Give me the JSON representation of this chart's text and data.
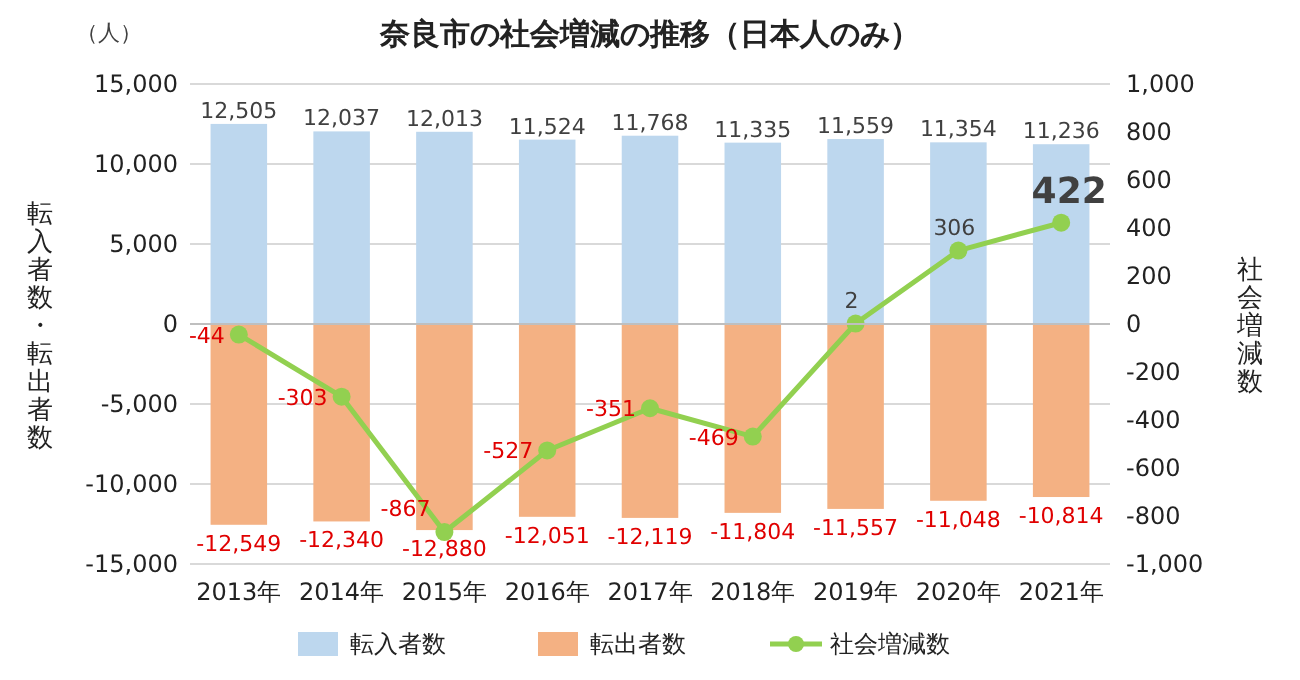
{
  "chart_data": {
    "type": "bar",
    "title": "奈良市の社会増減の推移（日本人のみ）",
    "ylabel": "転入者数・転出者数",
    "y2label": "社会増減数",
    "annotations": [
      "（人）"
    ],
    "categories": [
      "2013年",
      "2014年",
      "2015年",
      "2016年",
      "2017年",
      "2018年",
      "2019年",
      "2020年",
      "2021年"
    ],
    "stacked": true,
    "data_labels": true,
    "grid": "y",
    "legend": "bottom",
    "ylim": [
      -15000,
      15000
    ],
    "yticks": [
      {
        "value": -15000,
        "label": "-15,000"
      },
      {
        "value": -10000,
        "label": "-10,000"
      },
      {
        "value": -5000,
        "label": "-5,000"
      },
      0,
      {
        "value": 5000,
        "label": "5,000"
      },
      {
        "value": 10000,
        "label": "10,000"
      },
      {
        "value": 15000,
        "label": "15,000"
      }
    ],
    "y2lim": [
      -1000,
      1000
    ],
    "y2ticks": [
      {
        "value": -1000,
        "label": "-1,000"
      },
      -800,
      -600,
      -400,
      -200,
      0,
      200,
      400,
      600,
      800,
      {
        "value": 1000,
        "label": "1,000"
      }
    ],
    "series": [
      {
        "name": "転入者数",
        "color": "#bdd7ee",
        "values": [
          12505,
          12037,
          12013,
          11524,
          11768,
          11335,
          11559,
          11354,
          11236
        ],
        "value_labels": [
          "12,505",
          "12,037",
          "12,013",
          "11,524",
          "11,768",
          "11,335",
          "11,559",
          "11,354",
          "11,236"
        ]
      },
      {
        "name": "転出者数",
        "color": "#f4b183",
        "values": [
          -12549,
          -12340,
          -12880,
          -12051,
          -12119,
          -11804,
          -11557,
          -11048,
          -10814
        ],
        "value_labels": [
          "-12,549",
          "-12,340",
          "-12,880",
          "-12,051",
          "-12,119",
          "-11,804",
          "-11,557",
          "-11,048",
          "-10,814"
        ]
      },
      {
        "name": "社会増減数",
        "type": "line",
        "axis": "y2",
        "color": "#92d050",
        "marker": "circle",
        "values": [
          -44,
          -303,
          -867,
          -527,
          -351,
          -469,
          2,
          306,
          422
        ]
      }
    ]
  }
}
